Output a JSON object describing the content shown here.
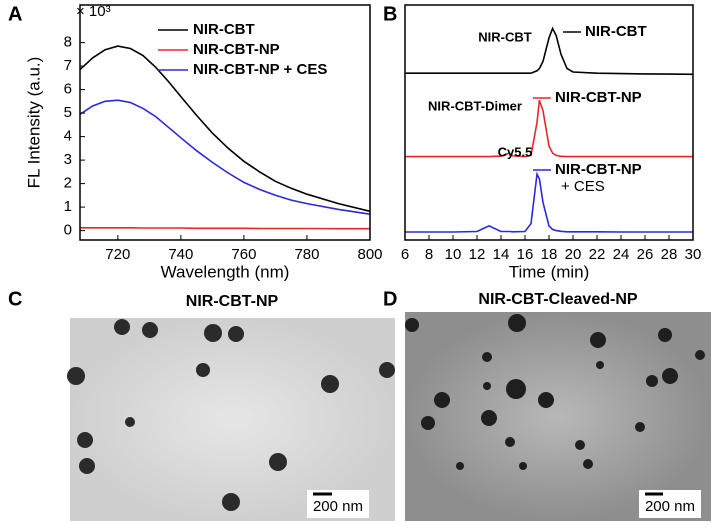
{
  "chart_data": [
    {
      "type": "line",
      "panel": "A",
      "y_multiplier": "× 10³",
      "xlabel": "Wavelength (nm)",
      "ylabel": "FL Intensity (a.u.)",
      "x": [
        708,
        712,
        716,
        720,
        724,
        728,
        732,
        736,
        740,
        745,
        750,
        755,
        760,
        765,
        770,
        775,
        780,
        790,
        800
      ],
      "xlim": [
        708,
        800
      ],
      "xticks": [
        720,
        740,
        760,
        780,
        800
      ],
      "ylim": [
        -0.4,
        9.6
      ],
      "yticks": [
        0,
        1,
        2,
        3,
        4,
        5,
        6,
        7,
        8
      ],
      "legend": "upper right",
      "series": [
        {
          "name": "NIR-CBT",
          "color": "#000000",
          "values": [
            6.85,
            7.35,
            7.7,
            7.85,
            7.75,
            7.45,
            6.95,
            6.35,
            5.7,
            4.9,
            4.15,
            3.5,
            2.95,
            2.5,
            2.1,
            1.8,
            1.55,
            1.15,
            0.82
          ]
        },
        {
          "name": "NIR-CBT-NP",
          "color": "#e8262a",
          "values": [
            0.12,
            0.12,
            0.12,
            0.12,
            0.12,
            0.11,
            0.11,
            0.11,
            0.11,
            0.1,
            0.1,
            0.1,
            0.1,
            0.09,
            0.09,
            0.09,
            0.09,
            0.08,
            0.08
          ]
        },
        {
          "name": "NIR-CBT-NP + CES",
          "color": "#2a2ad8",
          "values": [
            4.95,
            5.3,
            5.5,
            5.55,
            5.45,
            5.2,
            4.85,
            4.4,
            3.95,
            3.4,
            2.9,
            2.45,
            2.05,
            1.75,
            1.5,
            1.3,
            1.15,
            0.9,
            0.7
          ]
        }
      ]
    },
    {
      "type": "line",
      "panel": "B",
      "xlabel": "Time (min)",
      "x": [
        6,
        8,
        10,
        12,
        13,
        14,
        14.7,
        15,
        16,
        16.5,
        17,
        17.2,
        17.5,
        18,
        18.3,
        18.6,
        19,
        19.5,
        20,
        22,
        24,
        26,
        28,
        30
      ],
      "xlim": [
        6,
        30
      ],
      "xticks": [
        6,
        8,
        10,
        12,
        14,
        16,
        18,
        20,
        22,
        24,
        26,
        28,
        30
      ],
      "ylim": [
        0,
        10
      ],
      "annotations": [
        "NIR-CBT",
        "NIR-CBT-Dimer",
        "Cy5.5"
      ],
      "series": [
        {
          "name": "NIR-CBT",
          "color": "#000000",
          "values": [
            7.1,
            7.1,
            7.1,
            7.1,
            7.1,
            7.1,
            7.1,
            7.1,
            7.1,
            7.1,
            7.2,
            7.3,
            7.6,
            8.6,
            9.0,
            8.7,
            7.9,
            7.3,
            7.15,
            7.1,
            7.08,
            7.07,
            7.06,
            7.05
          ]
        },
        {
          "name": "NIR-CBT-NP",
          "color": "#e8262a",
          "values": [
            3.55,
            3.55,
            3.55,
            3.55,
            3.55,
            3.57,
            3.7,
            3.58,
            3.55,
            3.6,
            5.0,
            5.95,
            5.5,
            4.0,
            3.7,
            3.6,
            3.56,
            3.55,
            3.55,
            3.55,
            3.55,
            3.55,
            3.55,
            3.55
          ]
        },
        {
          "name": "NIR-CBT-NP + CES",
          "color": "#2a2ad8",
          "values": [
            0.34,
            0.34,
            0.34,
            0.36,
            0.6,
            0.36,
            0.36,
            0.35,
            0.36,
            0.7,
            2.8,
            2.6,
            1.6,
            0.6,
            0.45,
            0.4,
            0.37,
            0.35,
            0.35,
            0.35,
            0.34,
            0.34,
            0.34,
            0.34
          ]
        }
      ]
    }
  ],
  "images": [
    {
      "panel": "C",
      "title": "NIR-CBT-NP",
      "scale_label": "200 nm"
    },
    {
      "panel": "D",
      "title": "NIR-CBT-Cleaved-NP",
      "scale_label": "200 nm"
    }
  ]
}
